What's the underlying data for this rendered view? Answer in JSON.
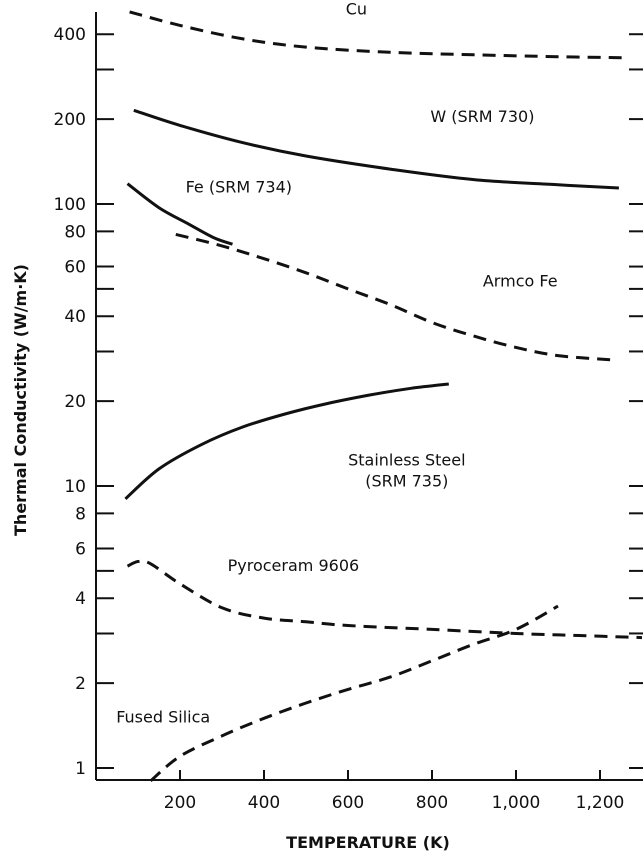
{
  "chart_data": {
    "type": "line",
    "xlabel": "TEMPERATURE (K)",
    "ylabel": "Thermal Conductivity (W/m·K)",
    "xlim": [
      0,
      1300
    ],
    "ylim": [
      0.88,
      560
    ],
    "yscale": "log",
    "x_ticks": [
      {
        "value": 200,
        "label": "200"
      },
      {
        "value": 400,
        "label": "400"
      },
      {
        "value": 600,
        "label": "600"
      },
      {
        "value": 800,
        "label": "800"
      },
      {
        "value": 1000,
        "label": "1,000"
      },
      {
        "value": 1200,
        "label": "1,200"
      }
    ],
    "y_ticks": [
      {
        "value": 1,
        "label": "1"
      },
      {
        "value": 2,
        "label": "2"
      },
      {
        "value": 3,
        "label": ""
      },
      {
        "value": 4,
        "label": "4"
      },
      {
        "value": 5,
        "label": ""
      },
      {
        "value": 6,
        "label": "6"
      },
      {
        "value": 8,
        "label": "8"
      },
      {
        "value": 10,
        "label": "10"
      },
      {
        "value": 20,
        "label": "20"
      },
      {
        "value": 30,
        "label": ""
      },
      {
        "value": 40,
        "label": "40"
      },
      {
        "value": 50,
        "label": ""
      },
      {
        "value": 60,
        "label": "60"
      },
      {
        "value": 80,
        "label": "80"
      },
      {
        "value": 100,
        "label": "100"
      },
      {
        "value": 200,
        "label": "200"
      },
      {
        "value": 300,
        "label": ""
      },
      {
        "value": 400,
        "label": "400"
      }
    ],
    "series": [
      {
        "name": "Cu",
        "style": "dashed",
        "label_lines": [
          "Cu"
        ],
        "label_anchor": [
          620,
          470
        ],
        "points": [
          [
            80,
            480
          ],
          [
            200,
            430
          ],
          [
            350,
            385
          ],
          [
            500,
            360
          ],
          [
            700,
            345
          ],
          [
            900,
            338
          ],
          [
            1100,
            333
          ],
          [
            1260,
            330
          ]
        ]
      },
      {
        "name": "W (SRM 730)",
        "style": "solid",
        "label_lines": [
          "W (SRM 730)"
        ],
        "label_anchor": [
          920,
          195
        ],
        "points": [
          [
            90,
            215
          ],
          [
            200,
            190
          ],
          [
            350,
            165
          ],
          [
            500,
            148
          ],
          [
            700,
            133
          ],
          [
            900,
            122
          ],
          [
            1100,
            117
          ],
          [
            1245,
            114
          ]
        ]
      },
      {
        "name": "Fe (SRM 734)",
        "style": "solid",
        "label_lines": [
          "Fe (SRM 734)"
        ],
        "label_anchor": [
          340,
          110
        ],
        "points": [
          [
            75,
            118
          ],
          [
            150,
            97
          ],
          [
            220,
            85
          ],
          [
            280,
            76
          ],
          [
            325,
            72
          ]
        ]
      },
      {
        "name": "Armco Fe",
        "style": "dashed",
        "label_lines": [
          "Armco Fe"
        ],
        "label_anchor": [
          1010,
          51
        ],
        "points": [
          [
            190,
            78
          ],
          [
            300,
            71
          ],
          [
            400,
            64
          ],
          [
            500,
            57
          ],
          [
            600,
            50
          ],
          [
            700,
            44
          ],
          [
            800,
            38
          ],
          [
            900,
            34
          ],
          [
            1000,
            31
          ],
          [
            1100,
            29
          ],
          [
            1230,
            28
          ]
        ]
      },
      {
        "name": "Stainless Steel (SRM 735)",
        "style": "solid",
        "label_lines": [
          "Stainless Steel",
          "(SRM 735)"
        ],
        "label_anchor": [
          740,
          11.8
        ],
        "points": [
          [
            70,
            9.0
          ],
          [
            150,
            11.5
          ],
          [
            250,
            14.0
          ],
          [
            350,
            16.2
          ],
          [
            450,
            18.0
          ],
          [
            550,
            19.6
          ],
          [
            650,
            21.0
          ],
          [
            750,
            22.2
          ],
          [
            840,
            23.0
          ]
        ]
      },
      {
        "name": "Pyroceram 9606",
        "style": "dashed",
        "label_lines": [
          "Pyroceram 9606"
        ],
        "label_anchor": [
          470,
          5.0
        ],
        "points": [
          [
            75,
            5.2
          ],
          [
            100,
            5.4
          ],
          [
            130,
            5.3
          ],
          [
            200,
            4.5
          ],
          [
            300,
            3.7
          ],
          [
            400,
            3.4
          ],
          [
            500,
            3.3
          ],
          [
            600,
            3.2
          ],
          [
            800,
            3.1
          ],
          [
            1000,
            3.0
          ],
          [
            1150,
            2.95
          ],
          [
            1300,
            2.9
          ]
        ]
      },
      {
        "name": "Fused Silica",
        "style": "dashed",
        "label_lines": [
          "Fused Silica"
        ],
        "label_anchor": [
          160,
          1.45
        ],
        "points": [
          [
            130,
            0.9
          ],
          [
            200,
            1.1
          ],
          [
            300,
            1.3
          ],
          [
            400,
            1.5
          ],
          [
            500,
            1.7
          ],
          [
            600,
            1.9
          ],
          [
            700,
            2.1
          ],
          [
            800,
            2.4
          ],
          [
            900,
            2.75
          ],
          [
            1000,
            3.1
          ],
          [
            1100,
            3.75
          ]
        ]
      }
    ]
  }
}
